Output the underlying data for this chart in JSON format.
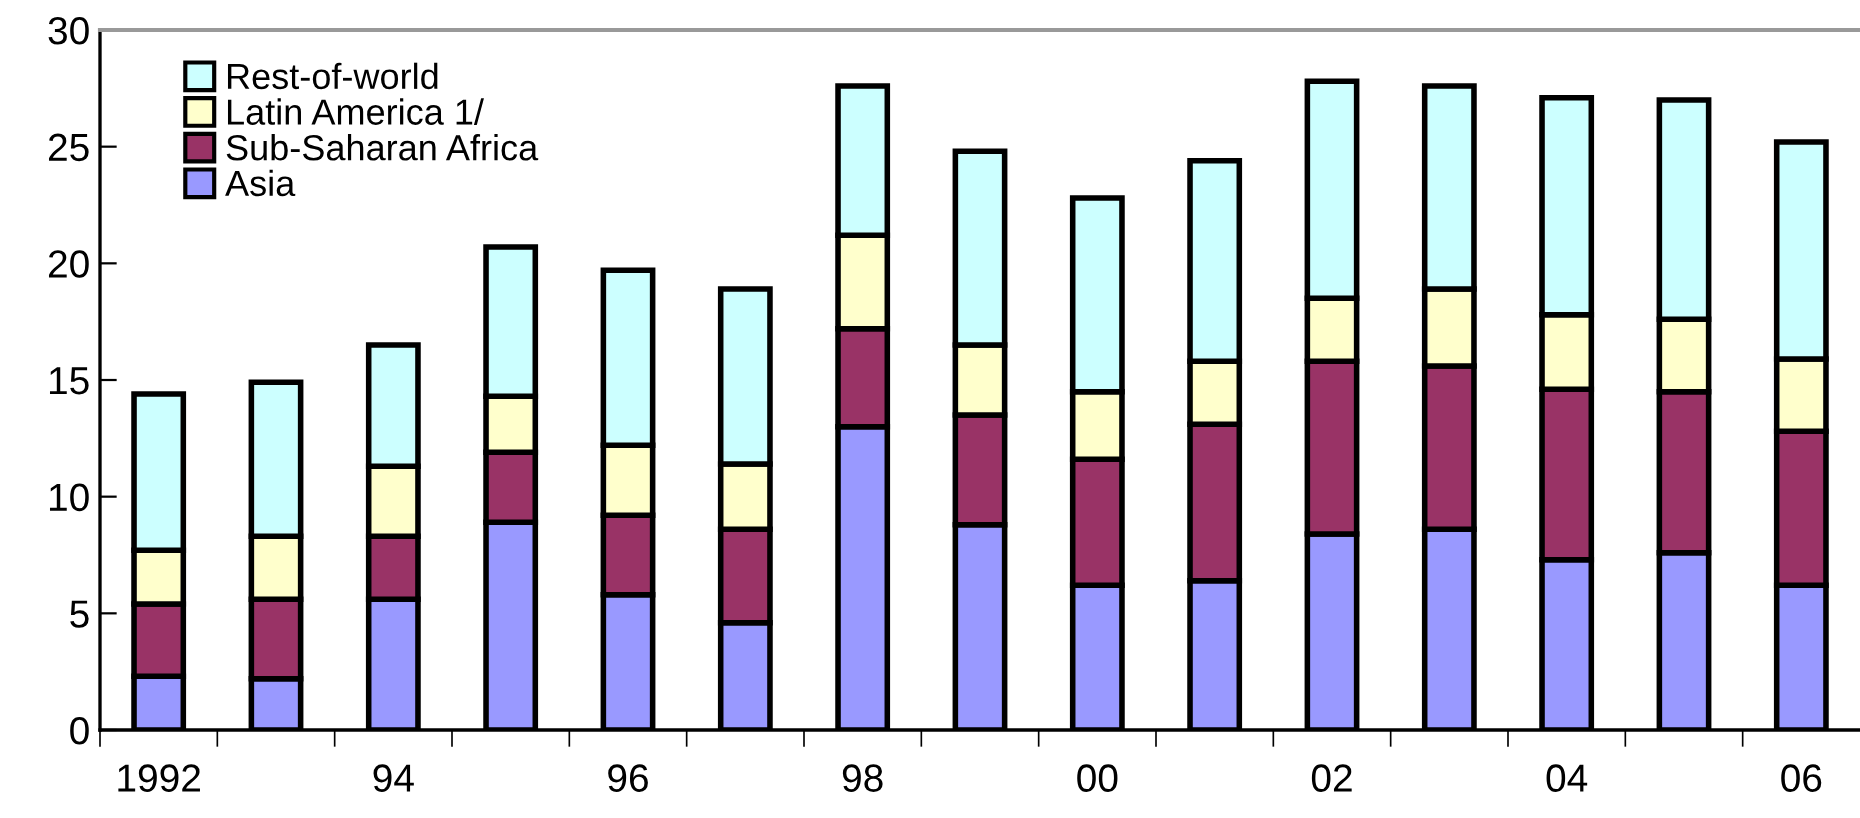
{
  "chart_data": {
    "type": "bar",
    "stacked": true,
    "categories": [
      "1992",
      null,
      "94",
      null,
      "96",
      null,
      "98",
      null,
      "00",
      null,
      "02",
      null,
      "04",
      null,
      "06"
    ],
    "series": [
      {
        "name": "Asia",
        "color": "#9999ff",
        "values": [
          2.3,
          2.2,
          5.6,
          8.9,
          5.8,
          4.6,
          13.0,
          8.8,
          6.2,
          6.4,
          8.4,
          8.6,
          7.3,
          7.6,
          6.2
        ]
      },
      {
        "name": "Sub-Saharan Africa",
        "color": "#993366",
        "values": [
          3.1,
          3.4,
          2.7,
          3.0,
          3.4,
          4.0,
          4.2,
          4.7,
          5.4,
          6.7,
          7.4,
          7.0,
          7.3,
          6.9,
          6.6
        ]
      },
      {
        "name": "Latin America 1/",
        "color": "#ffffcc",
        "values": [
          2.3,
          2.7,
          3.0,
          2.4,
          3.0,
          2.8,
          4.0,
          3.0,
          2.9,
          2.7,
          2.7,
          3.3,
          3.2,
          3.1,
          3.1
        ]
      },
      {
        "name": "Rest-of-world",
        "color": "#ccffff",
        "values": [
          6.7,
          6.6,
          5.2,
          6.4,
          7.5,
          7.5,
          6.4,
          8.3,
          8.3,
          8.6,
          9.3,
          8.7,
          9.3,
          9.4,
          9.3
        ]
      }
    ],
    "ylim": [
      0,
      30
    ],
    "yticks": [
      0,
      5,
      10,
      15,
      20,
      25,
      30
    ],
    "grid": false,
    "legend": "top left"
  }
}
